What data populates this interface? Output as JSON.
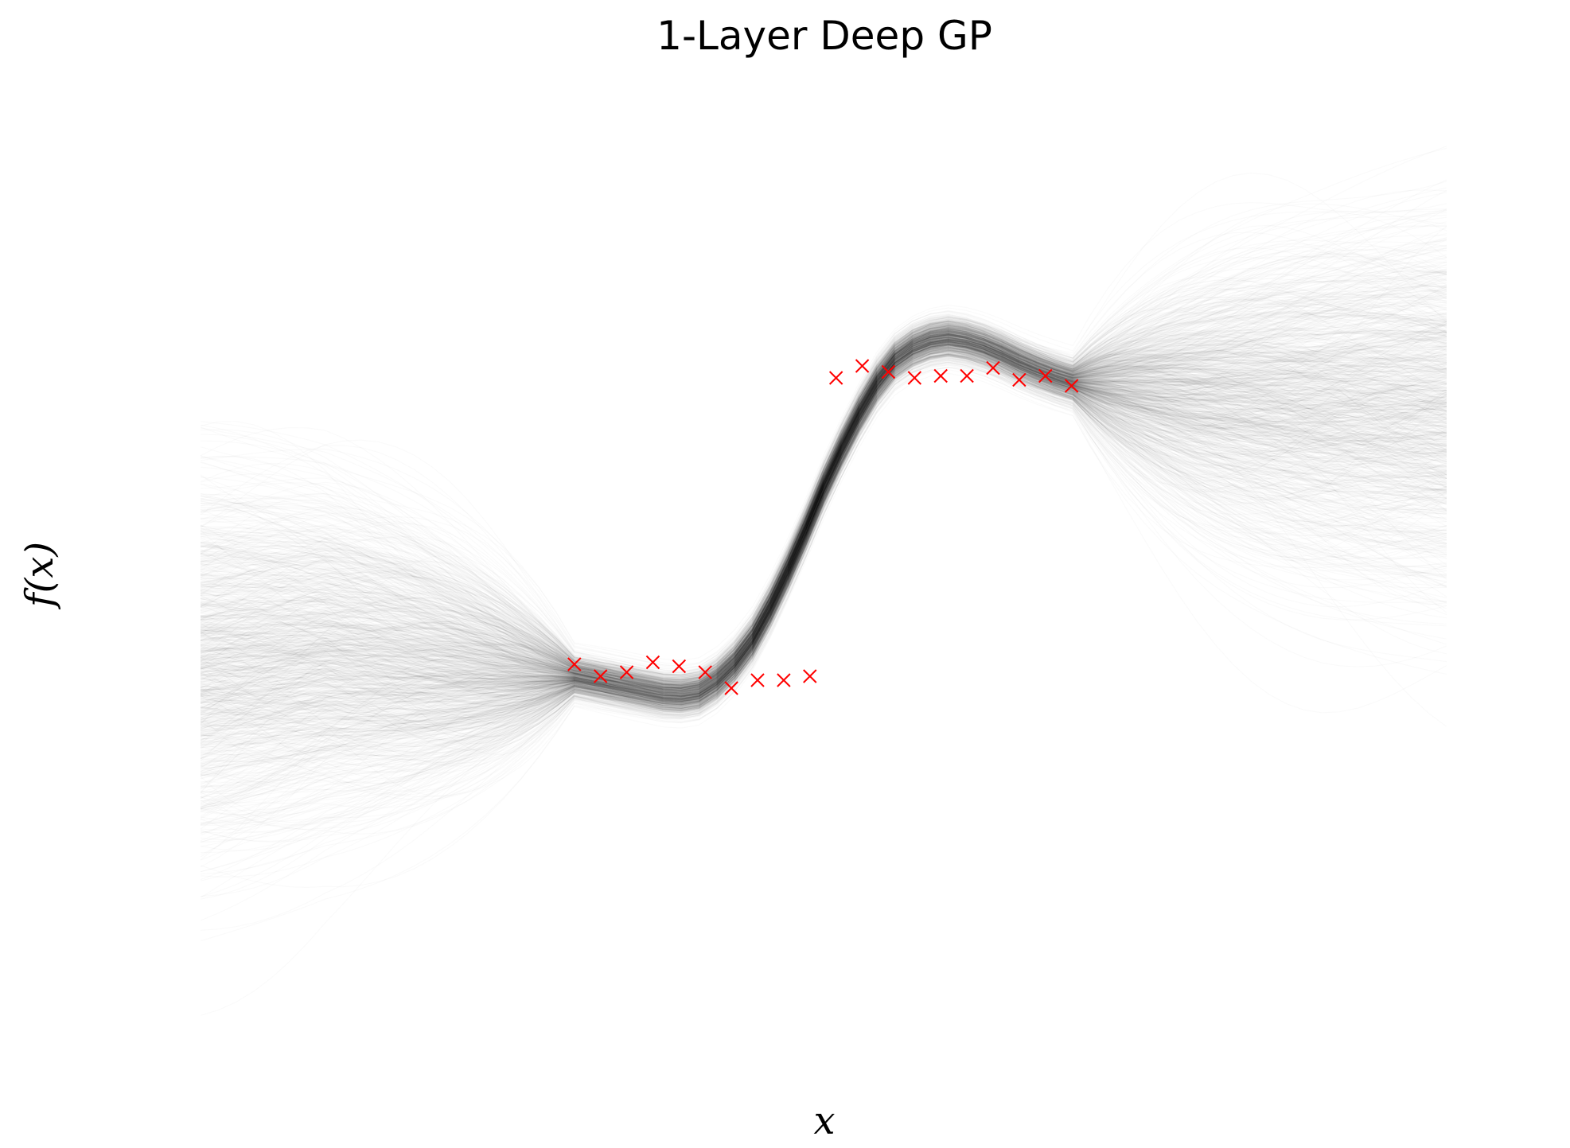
{
  "chart_data": {
    "type": "line",
    "title": "1-Layer Deep GP",
    "xlabel": "x",
    "ylabel": "f(x)",
    "grid": false,
    "axes_visible": false,
    "xlim": [
      -2.5,
      2.5
    ],
    "ylim": [
      -2.4,
      2.4
    ],
    "samples": {
      "count": 1000,
      "color": "#000000",
      "opacity": 0.018,
      "mean_curve": {
        "x": [
          -2.5,
          -2.0,
          -1.5,
          -1.2,
          -1.0,
          -0.8,
          -0.6,
          -0.5,
          -0.4,
          -0.3,
          -0.2,
          -0.1,
          0.0,
          0.1,
          0.2,
          0.3,
          0.4,
          0.5,
          0.6,
          0.7,
          0.8,
          0.9,
          1.0,
          1.5,
          2.0,
          2.5
        ],
        "y": [
          -0.52,
          -0.48,
          -0.54,
          -0.58,
          -0.6,
          -0.65,
          -0.7,
          -0.68,
          -0.6,
          -0.45,
          -0.22,
          0.05,
          0.35,
          0.62,
          0.85,
          1.01,
          1.08,
          1.1,
          1.08,
          1.03,
          0.97,
          0.92,
          0.88,
          0.82,
          0.78,
          0.76
        ]
      }
    },
    "series": [
      {
        "marker": "x",
        "color": "#ff0000",
        "x": [
          -1.0,
          -0.895,
          -0.79,
          -0.685,
          -0.58,
          -0.475,
          -0.37,
          -0.265,
          -0.16,
          -0.055,
          0.05,
          0.155,
          0.26,
          0.365,
          0.47,
          0.575,
          0.68,
          0.785,
          0.89,
          0.995
        ],
        "y": [
          -0.54,
          -0.6,
          -0.58,
          -0.53,
          -0.55,
          -0.58,
          -0.66,
          -0.62,
          -0.62,
          -0.6,
          0.9,
          0.96,
          0.93,
          0.9,
          0.91,
          0.91,
          0.95,
          0.89,
          0.91,
          0.86
        ]
      }
    ]
  }
}
